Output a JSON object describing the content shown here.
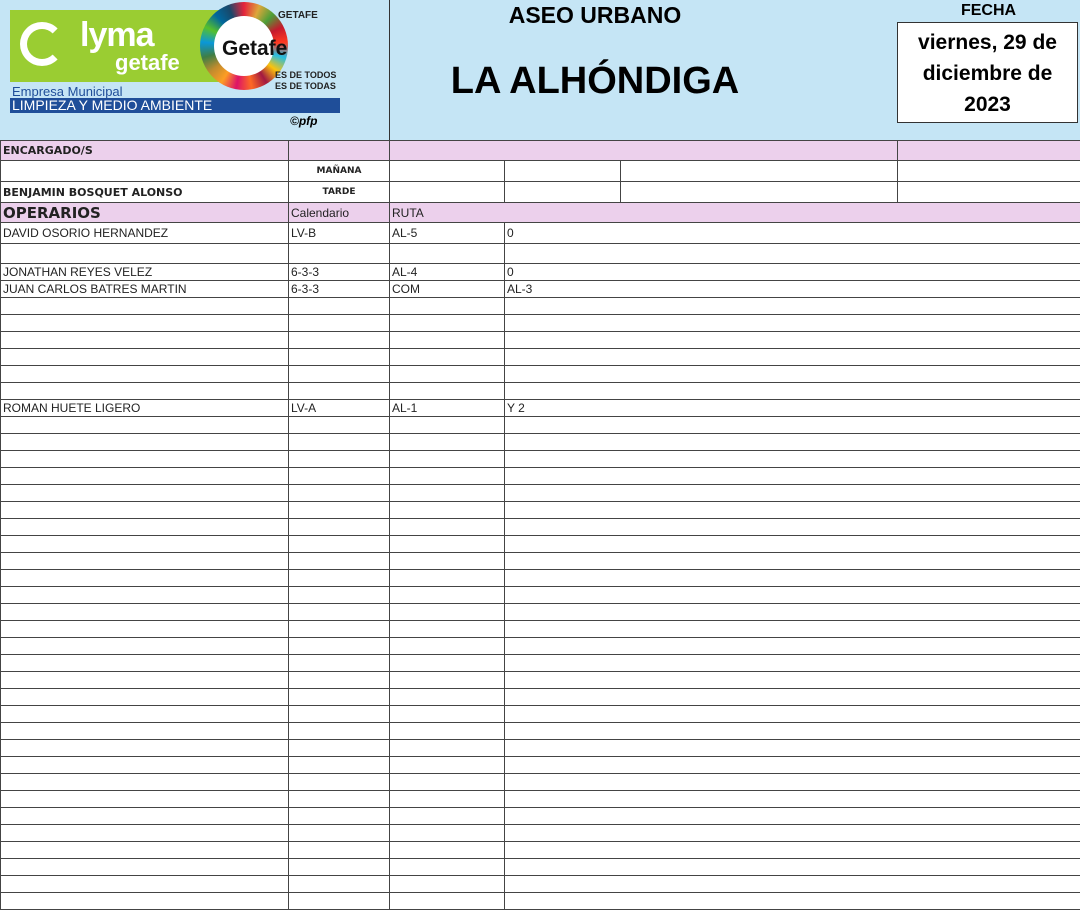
{
  "header": {
    "logo": {
      "brand": "lyma",
      "brand_sub": "getafe",
      "company": "Empresa Municipal",
      "department": "LIMPIEZA Y MEDIO AMBIENTE",
      "city_logo": "Getafe",
      "ayuntamiento": "GETAFE",
      "motto1": "ES DE TODOS",
      "motto2": "ES DE TODAS",
      "copyright": "©pfp"
    },
    "title": "ASEO URBANO",
    "location": "LA ALHÓNDIGA",
    "date_label": "FECHA",
    "date": "viernes, 29 de diciembre de 2023"
  },
  "encargados": {
    "label": "ENCARGADO/S",
    "name": "BENJAMIN BOSQUET ALONSO",
    "morning": "MAÑANA",
    "afternoon": "TARDE"
  },
  "operarios": {
    "label": "OPERARIOS",
    "col_calendar": "Calendario",
    "col_route": "RUTA",
    "rows": [
      [
        "DAVID OSORIO HERNANDEZ",
        "LV-B",
        "AL-5",
        "0"
      ],
      [
        "",
        "",
        "",
        ""
      ],
      [
        "JONATHAN REYES VELEZ",
        "6-3-3",
        "AL-4",
        "0"
      ],
      [
        "JUAN CARLOS BATRES MARTIN",
        "6-3-3",
        "COM",
        "AL-3"
      ],
      [
        "",
        "",
        "",
        ""
      ],
      [
        "",
        "",
        "",
        ""
      ],
      [
        "",
        "",
        "",
        ""
      ],
      [
        "",
        "",
        "",
        ""
      ],
      [
        "",
        "",
        "",
        ""
      ],
      [
        "",
        "",
        "",
        ""
      ],
      [
        "ROMAN HUETE LIGERO",
        "LV-A",
        "AL-1",
        "Y 2"
      ]
    ]
  }
}
